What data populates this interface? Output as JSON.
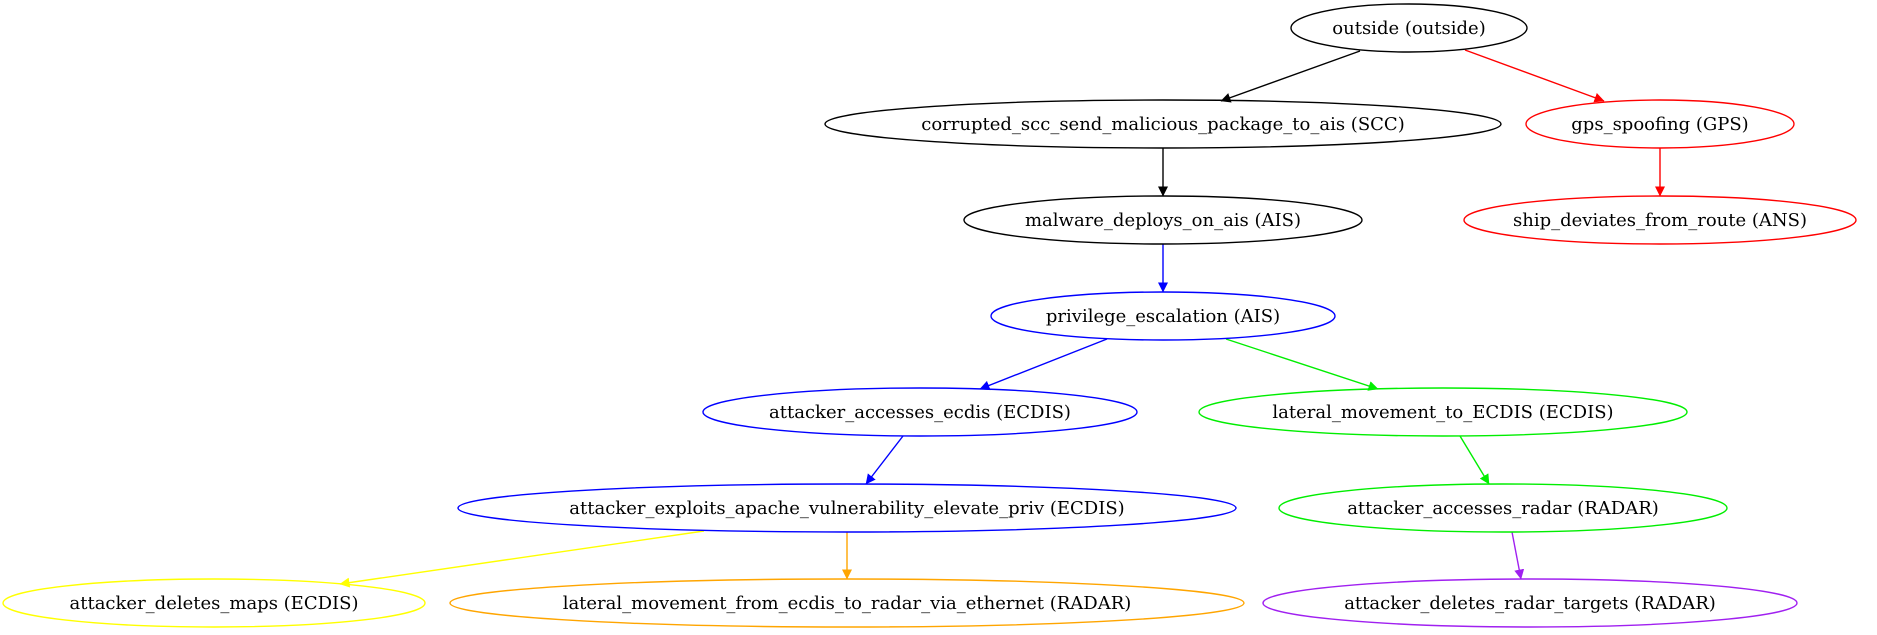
{
  "nodes": [
    {
      "id": "outside",
      "label": "outside (outside)",
      "color": "#000000"
    },
    {
      "id": "scc",
      "label": "corrupted_scc_send_malicious_package_to_ais (SCC)",
      "color": "#000000"
    },
    {
      "id": "gps",
      "label": "gps_spoofing (GPS)",
      "color": "#ff0000"
    },
    {
      "id": "malware",
      "label": "malware_deploys_on_ais (AIS)",
      "color": "#000000"
    },
    {
      "id": "ship",
      "label": "ship_deviates_from_route (ANS)",
      "color": "#ff0000"
    },
    {
      "id": "privesc",
      "label": "privilege_escalation (AIS)",
      "color": "#0000ff"
    },
    {
      "id": "ecdis",
      "label": "attacker_accesses_ecdis (ECDIS)",
      "color": "#0000ff"
    },
    {
      "id": "lateral_ecdis",
      "label": "lateral_movement_to_ECDIS (ECDIS)",
      "color": "#00ee00"
    },
    {
      "id": "apache",
      "label": "attacker_exploits_apache_vulnerability_elevate_priv (ECDIS)",
      "color": "#0000ff"
    },
    {
      "id": "radar",
      "label": "attacker_accesses_radar (RADAR)",
      "color": "#00ee00"
    },
    {
      "id": "maps",
      "label": "attacker_deletes_maps (ECDIS)",
      "color": "#ffff00"
    },
    {
      "id": "lateral_radar",
      "label": "lateral_movement_from_ecdis_to_radar_via_ethernet (RADAR)",
      "color": "#ffa500"
    },
    {
      "id": "targets",
      "label": "attacker_deletes_radar_targets (RADAR)",
      "color": "#a020f0"
    }
  ],
  "edges": [
    {
      "from": "outside",
      "to": "scc",
      "color": "#000000"
    },
    {
      "from": "outside",
      "to": "gps",
      "color": "#ff0000"
    },
    {
      "from": "scc",
      "to": "malware",
      "color": "#000000"
    },
    {
      "from": "gps",
      "to": "ship",
      "color": "#ff0000"
    },
    {
      "from": "malware",
      "to": "privesc",
      "color": "#0000ff"
    },
    {
      "from": "privesc",
      "to": "ecdis",
      "color": "#0000ff"
    },
    {
      "from": "privesc",
      "to": "lateral_ecdis",
      "color": "#00ee00"
    },
    {
      "from": "ecdis",
      "to": "apache",
      "color": "#0000ff"
    },
    {
      "from": "lateral_ecdis",
      "to": "radar",
      "color": "#00ee00"
    },
    {
      "from": "apache",
      "to": "maps",
      "color": "#ffff00"
    },
    {
      "from": "apache",
      "to": "lateral_radar",
      "color": "#ffa500"
    },
    {
      "from": "radar",
      "to": "targets",
      "color": "#a020f0"
    }
  ]
}
